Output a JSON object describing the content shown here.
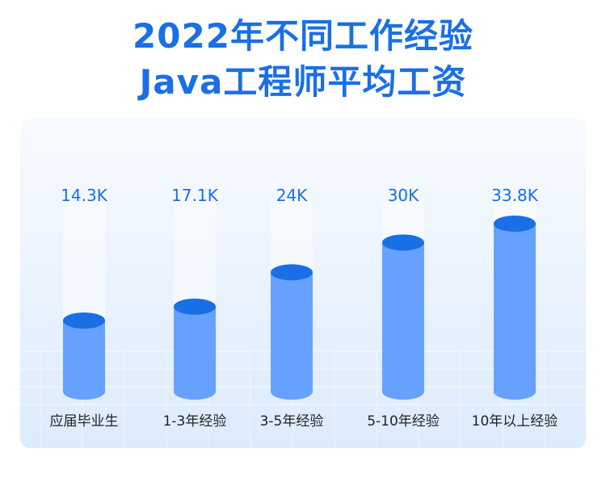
{
  "title_line1": "2022年不同工作经验",
  "title_line2": "Java工程师平均工资",
  "colors": {
    "title": "#1a6fe6",
    "bar_body": "#66a1ff",
    "bar_top": "#1a6fe6",
    "value_label": "#1a6fe6",
    "category_label": "#222222"
  },
  "chart_data": {
    "type": "bar",
    "title": "2022年不同工作经验 Java工程师平均工资",
    "categories": [
      "应届毕业生",
      "1-3年经验",
      "3-5年经验",
      "5-10年经验",
      "10年以上经验"
    ],
    "values": [
      14.3,
      17.1,
      24,
      30,
      33.8
    ],
    "value_labels": [
      "14.3K",
      "17.1K",
      "24K",
      "30K",
      "33.8K"
    ],
    "xlabel": "",
    "ylabel": "",
    "legend": "none",
    "grid": false
  }
}
